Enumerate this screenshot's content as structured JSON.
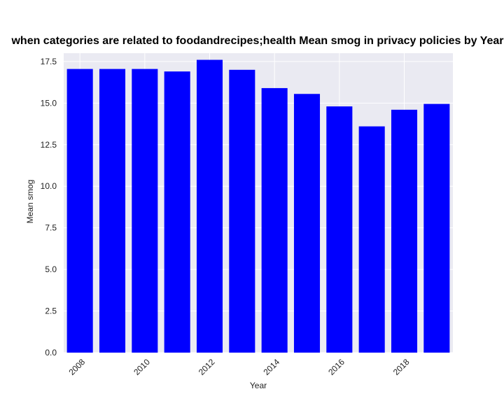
{
  "chart_data": {
    "type": "bar",
    "title": "when categories are related to foodandrecipes;health Mean smog in privacy policies by Year",
    "xlabel": "Year",
    "ylabel": "Mean smog",
    "categories": [
      2008,
      2009,
      2010,
      2011,
      2012,
      2013,
      2014,
      2015,
      2016,
      2017,
      2018,
      2019
    ],
    "values": [
      17.05,
      17.05,
      17.05,
      16.9,
      17.6,
      17.0,
      15.9,
      15.55,
      14.8,
      13.6,
      14.6,
      14.95
    ],
    "ylim": [
      0,
      18.0
    ],
    "yticks": [
      "0.0",
      "2.5",
      "5.0",
      "7.5",
      "10.0",
      "12.5",
      "15.0",
      "17.5"
    ],
    "xticks": [
      "2008",
      "2010",
      "2012",
      "2014",
      "2016",
      "2018"
    ],
    "grid": true,
    "bar_color": "#0000ff",
    "plot_background": "#eaeaf2"
  }
}
